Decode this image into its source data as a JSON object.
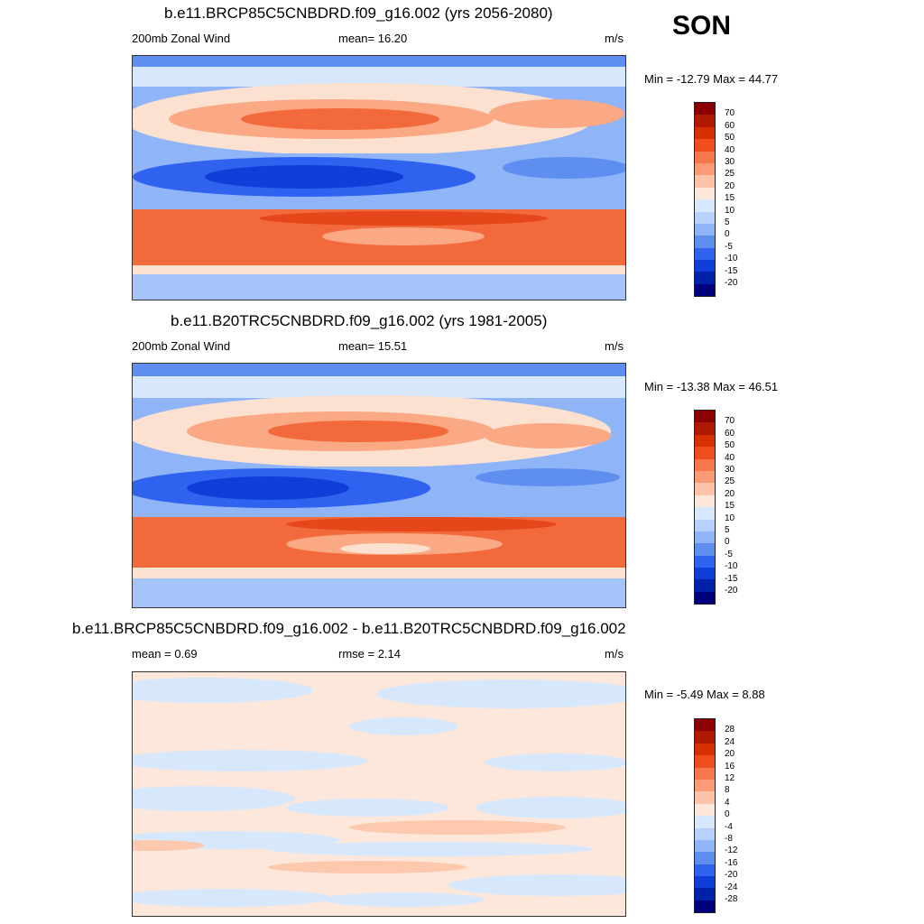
{
  "season": "SON",
  "units": "m/s",
  "panels": [
    {
      "title": "b.e11.BRCP85C5CNBDRD.f09_g16.002 (yrs 2056-2080)",
      "left_label": "200mb Zonal Wind",
      "center_label": "mean=  16.20",
      "right_label": "m/s",
      "minmax": "Min = -12.79 Max =  44.77",
      "colorbar_labels": [
        "70",
        "60",
        "50",
        "40",
        "30",
        "25",
        "20",
        "15",
        "10",
        "5",
        "0",
        "-5",
        "-10",
        "-15",
        "-20"
      ]
    },
    {
      "title": "b.e11.B20TRC5CNBDRD.f09_g16.002 (yrs 1981-2005)",
      "left_label": "200mb Zonal Wind",
      "center_label": "mean=  15.51",
      "right_label": "m/s",
      "minmax": "Min = -13.38 Max =  46.51",
      "colorbar_labels": [
        "70",
        "60",
        "50",
        "40",
        "30",
        "25",
        "20",
        "15",
        "10",
        "5",
        "0",
        "-5",
        "-10",
        "-15",
        "-20"
      ]
    },
    {
      "title": "b.e11.BRCP85C5CNBDRD.f09_g16.002 - b.e11.B20TRC5CNBDRD.f09_g16.002",
      "left_label": "mean =   0.69",
      "center_label": "rmse =   2.14",
      "right_label": "m/s",
      "minmax": "Min =  -5.49 Max =   8.88",
      "colorbar_labels": [
        "28",
        "24",
        "20",
        "16",
        "12",
        "8",
        "4",
        "0",
        "-4",
        "-8",
        "-12",
        "-16",
        "-20",
        "-24",
        "-28"
      ]
    }
  ],
  "colorbar_colors": [
    "#8b0000",
    "#b01a00",
    "#d63000",
    "#f04e1e",
    "#f7774a",
    "#fb9a74",
    "#fcc3a8",
    "#fde7da",
    "#d7e8fd",
    "#b5d1fc",
    "#8fb4f8",
    "#5e8ff0",
    "#2f62ee",
    "#0f3fd8",
    "#0022a8",
    "#00007e"
  ],
  "map_colors": {
    "strong_neg": "#1a4fe6",
    "neg": "#5e8ff0",
    "weak_neg": "#a5c4fa",
    "near_zero": "#d7e8fd",
    "weak_pos": "#fde1d0",
    "pos": "#fba884",
    "strong_pos": "#f26a3c",
    "very_strong_pos": "#e5461a",
    "diff_neg": "#d7e8fd",
    "diff_pos": "#fde7da",
    "diff_pos2": "#fcc8ae"
  }
}
